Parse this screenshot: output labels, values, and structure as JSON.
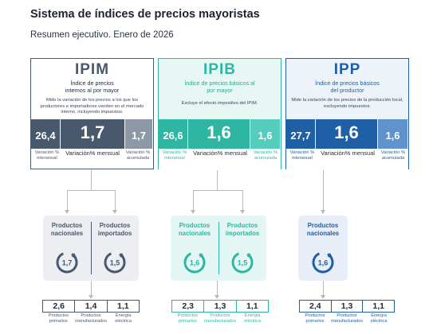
{
  "header": {
    "title": "Sistema de índices de precios mayoristas",
    "subtitle": "Resumen ejecutivo. Enero de 2026"
  },
  "colors": {
    "ipim": "#48586d",
    "ipim_light": "#8d98a6",
    "ipib": "#2fb6a3",
    "ipib_light": "#55cdbd",
    "ipp": "#1e5fa5",
    "ipp_light": "#5e93cd"
  },
  "indices": [
    {
      "key": "ipim",
      "name": "IPIM",
      "full_name": "Índice de precios internos al por mayor",
      "description": "Mide la variación de los precios a los que los productores e importadores venden en el mercado interno, incluyendo impuestos.",
      "interanual": "26,4",
      "mensual": "1,7",
      "acumulada": "1,7",
      "label_interanual": "Variación % interanual",
      "label_mensual": "Variación% mensual",
      "label_acumulada": "Variación % acumulada"
    },
    {
      "key": "ipib",
      "name": "IPIB",
      "full_name": "Índice de precios básicos al por mayor",
      "description": "Excluye el efecto impositivo del IPIM.",
      "interanual": "26,6",
      "mensual": "1,6",
      "acumulada": "1,6",
      "label_interanual": "Variación % interanual",
      "label_mensual": "Variación% mensual",
      "label_acumulada": "Variación % acumulada"
    },
    {
      "key": "ipp",
      "name": "IPP",
      "full_name": "Índice de precios básicos del productor",
      "description": "Mide la variación de los precios de la producción local, excluyendo impuestos.",
      "interanual": "27,7",
      "mensual": "1,6",
      "acumulada": "1,6",
      "label_interanual": "Variación % interanual",
      "label_mensual": "Variación% mensual",
      "label_acumulada": "Variación % acumulada"
    }
  ],
  "breakdowns": [
    {
      "key": "ipim",
      "items": [
        {
          "label": "Productos nacionales",
          "value": "1,7"
        },
        {
          "label": "Productos importados",
          "value": "1,5"
        }
      ],
      "sectors": [
        {
          "label": "Productos primarios",
          "value": "2,6"
        },
        {
          "label": "Productos manufacturados",
          "value": "1,4"
        },
        {
          "label": "Energía eléctrica",
          "value": "1,1"
        }
      ]
    },
    {
      "key": "ipib",
      "items": [
        {
          "label": "Productos nacionales",
          "value": "1,6"
        },
        {
          "label": "Productos importados",
          "value": "1,5"
        }
      ],
      "sectors": [
        {
          "label": "Productos primarios",
          "value": "2,3"
        },
        {
          "label": "Productos manufacturados",
          "value": "1,3"
        },
        {
          "label": "Energía eléctrica",
          "value": "1,1"
        }
      ]
    },
    {
      "key": "ipp",
      "items": [
        {
          "label": "Productos nacionales",
          "value": "1,6"
        }
      ],
      "sectors": [
        {
          "label": "Productos primarios",
          "value": "2,4"
        },
        {
          "label": "Productos manufacturados",
          "value": "1,3"
        },
        {
          "label": "Energía eléctrica",
          "value": "1,1"
        }
      ]
    }
  ]
}
